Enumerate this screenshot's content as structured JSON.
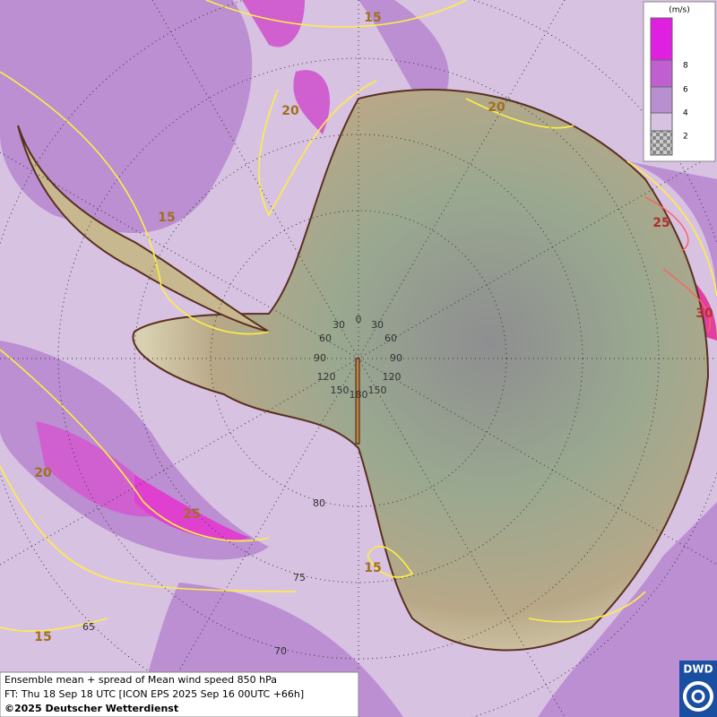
{
  "legend": {
    "unit": "(m/s)",
    "ticks": [
      8,
      6,
      4,
      2
    ]
  },
  "contour_labels": [
    "15",
    "20",
    "20",
    "15",
    "25",
    "30",
    "20",
    "25",
    "15",
    "15"
  ],
  "longitude_labels": [
    "0",
    "30",
    "30",
    "60",
    "60",
    "90",
    "90",
    "120",
    "120",
    "150",
    "150",
    "180"
  ],
  "latitude_labels": [
    "80",
    "75",
    "70",
    "65"
  ],
  "footer": {
    "line1": "Ensemble mean + spread of Mean wind speed 850 hPa",
    "line2": "FT: Thu 18 Sep 18 UTC [ICON EPS 2025 Sep 16 00UTC +66h]",
    "line3": "©2025 Deutscher Wetterdienst"
  },
  "logo": "DWD"
}
